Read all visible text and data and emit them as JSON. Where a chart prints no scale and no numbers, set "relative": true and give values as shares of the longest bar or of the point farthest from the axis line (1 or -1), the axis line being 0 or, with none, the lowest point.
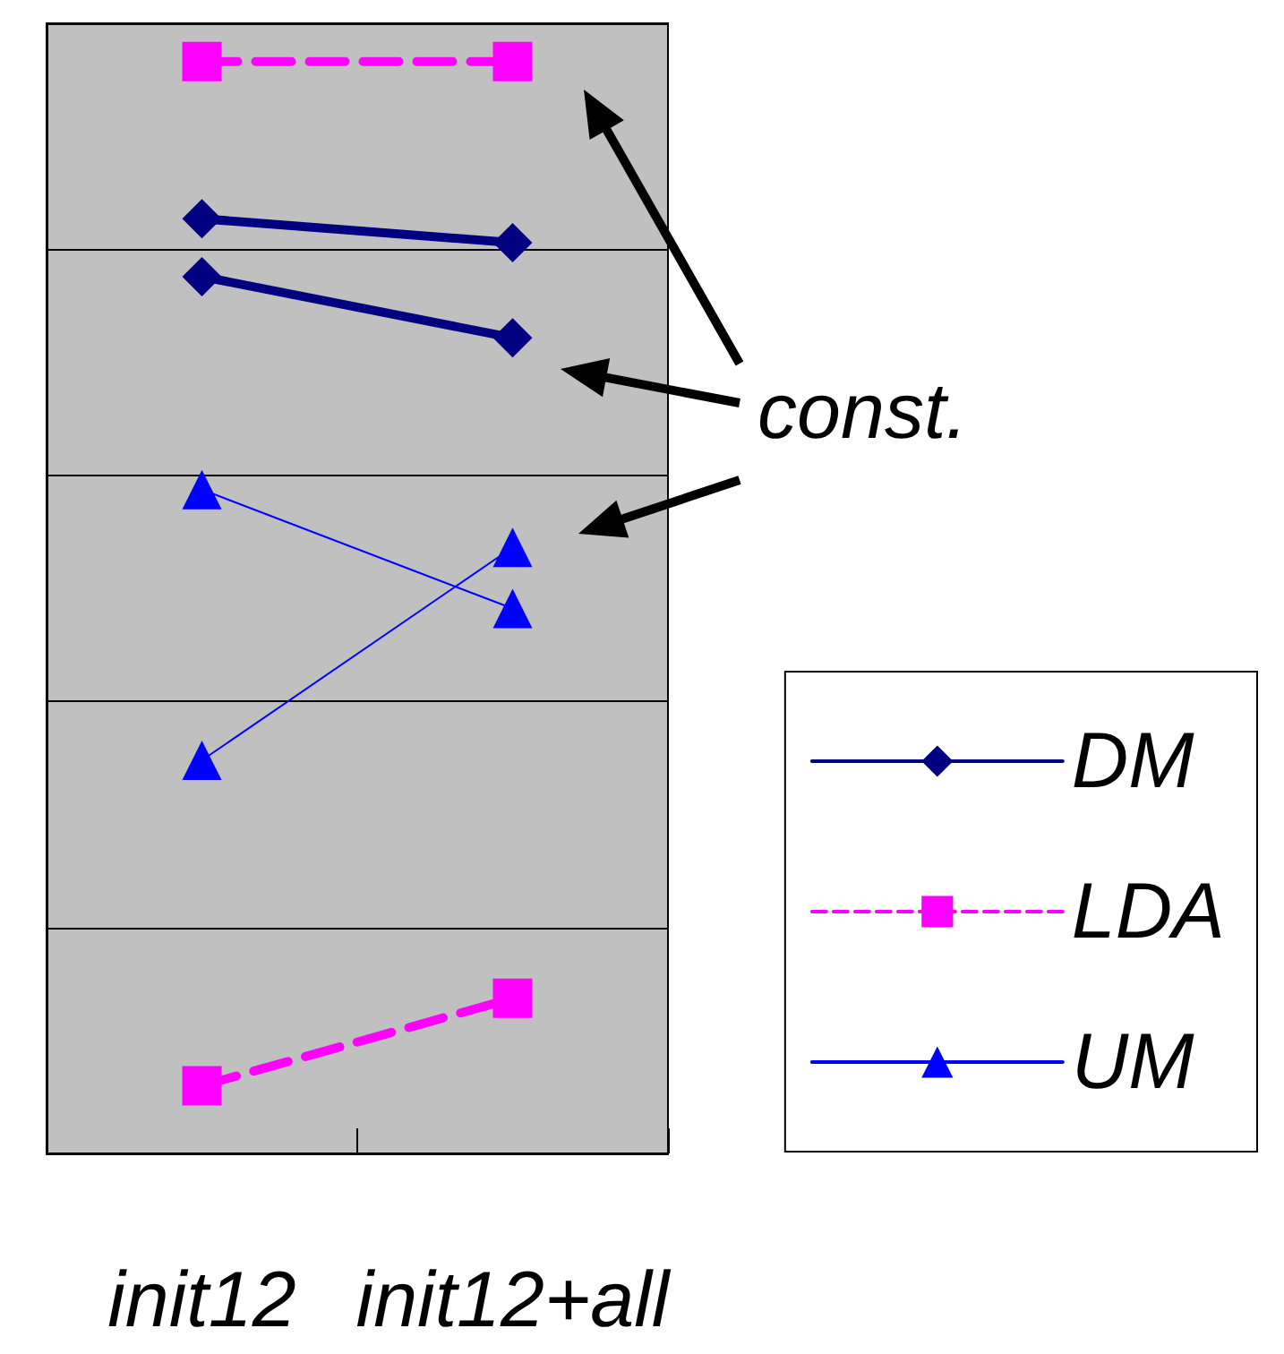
{
  "chart_data": {
    "type": "line",
    "relative": true,
    "categories": [
      "init12",
      "init12+all"
    ],
    "series": [
      {
        "name": "DM",
        "color": "#000080",
        "marker": "diamond",
        "line_style": "solid",
        "values": [
          0.856,
          0.834
        ]
      },
      {
        "color": "#000080",
        "marker": "diamond",
        "line_style": "solid",
        "values": [
          0.803,
          0.747
        ]
      },
      {
        "name": "LDA",
        "color": "#ff00ff",
        "marker": "square",
        "line_style": "dashed",
        "values": [
          1,
          1
        ]
      },
      {
        "color": "#ff00ff",
        "marker": "square",
        "line_style": "dashed",
        "values": [
          0.062,
          0.142
        ]
      },
      {
        "name": "UM",
        "color": "#0000ff",
        "marker": "triangle",
        "line_style": "solid",
        "values": [
          0.608,
          0.499
        ]
      },
      {
        "color": "#0000ff",
        "marker": "triangle",
        "line_style": "solid",
        "values": [
          0.36,
          0.555
        ]
      }
    ],
    "annotations": [
      "const."
    ],
    "grid": "y",
    "legend": "right"
  }
}
